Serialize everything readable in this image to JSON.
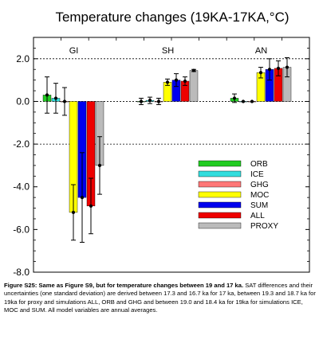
{
  "chart_data": {
    "type": "bar",
    "title": "Temperature changes (19KA-17KA,°C)",
    "xlabel": "",
    "ylabel": "",
    "ylim": [
      -8.0,
      3.0
    ],
    "yticks": [
      2.0,
      0.0,
      -2.0,
      -4.0,
      -6.0,
      -8.0
    ],
    "ytick_labels": [
      "2.0",
      "0.0",
      "-2.0",
      "-4.0",
      "-6.0",
      "-8.0"
    ],
    "grid": "dotted horizontal lines at 2.0, 0.0 and -2.0",
    "legend_position": "lower-right",
    "categories": [
      "GI",
      "SH",
      "AN"
    ],
    "series": [
      {
        "name": "ORB",
        "color": "#22cc22",
        "values": [
          0.3,
          0.0,
          0.15
        ],
        "errors": [
          0.85,
          0.15,
          0.2
        ]
      },
      {
        "name": "ICE",
        "color": "#33dddd",
        "values": [
          0.15,
          0.05,
          0.0
        ],
        "errors": [
          0.7,
          0.15,
          0.0
        ]
      },
      {
        "name": "GHG",
        "color": "#ff7777",
        "values": [
          0.0,
          0.0,
          0.0
        ],
        "errors": [
          0.65,
          0.15,
          0.0
        ]
      },
      {
        "name": "MOC",
        "color": "#ffff00",
        "values": [
          -5.2,
          0.9,
          1.35
        ],
        "errors": [
          1.3,
          0.15,
          0.25
        ]
      },
      {
        "name": "SUM",
        "color": "#0000ee",
        "values": [
          -4.5,
          1.0,
          1.5
        ],
        "errors": [
          2.1,
          0.3,
          0.5
        ]
      },
      {
        "name": "ALL",
        "color": "#ee0000",
        "values": [
          -4.9,
          0.95,
          1.55
        ],
        "errors": [
          1.3,
          0.2,
          0.35
        ]
      },
      {
        "name": "PROXY",
        "color": "#bbbbbb",
        "values": [
          -3.0,
          1.45,
          1.6
        ],
        "errors": [
          1.35,
          0.05,
          0.45
        ]
      }
    ]
  },
  "caption": {
    "label": "Figure S25:",
    "title": "Same as Figure S9, but for temperature changes between 19 and 17 ka.",
    "body": "SAT differences and their uncertainties (one standard deviation) are derived between 17.3 and 16.7 ka for 17 ka, between 19.3 and 18.7 ka for 19ka for proxy and simulations ALL, ORB and GHG and between 19.0 and 18.4 ka for 19ka for simulations ICE, MOC and SUM. All model variables are annual averages."
  }
}
